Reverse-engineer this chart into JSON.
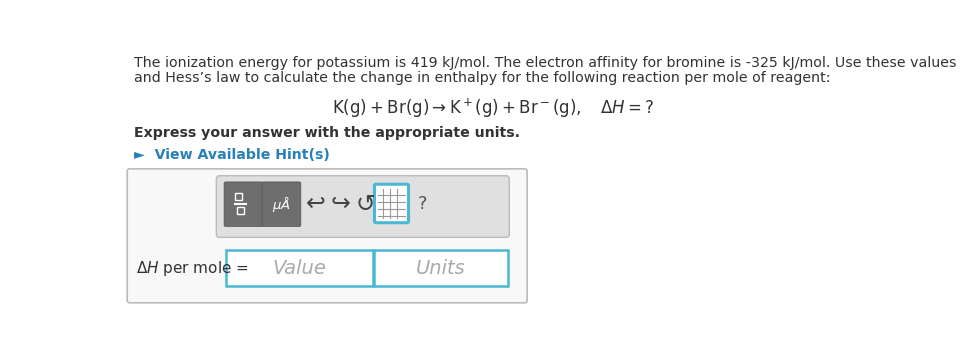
{
  "main_bg": "#ffffff",
  "paragraph_line1": "The ionization energy for potassium is 419 kJ/mol. The electron affinity for bromine is -325 kJ/mol. Use these values",
  "paragraph_line2": "and Hess’s law to calculate the change in enthalpy for the following reaction per mole of reagent:",
  "bold_line": "Express your answer with the appropriate units.",
  "hint_text": "►  View Available Hint(s)",
  "hint_color": "#2980b9",
  "placeholder_value": "Value",
  "placeholder_units": "Units",
  "box_border_color": "#4ab8d4",
  "toolbar_bg": "#e0e0e0",
  "toolbar_border": "#bbbbbb",
  "outer_box_border": "#bbbbbb",
  "text_color": "#333333",
  "placeholder_color": "#aaaaaa",
  "icon_bg": "#6e6e6e"
}
